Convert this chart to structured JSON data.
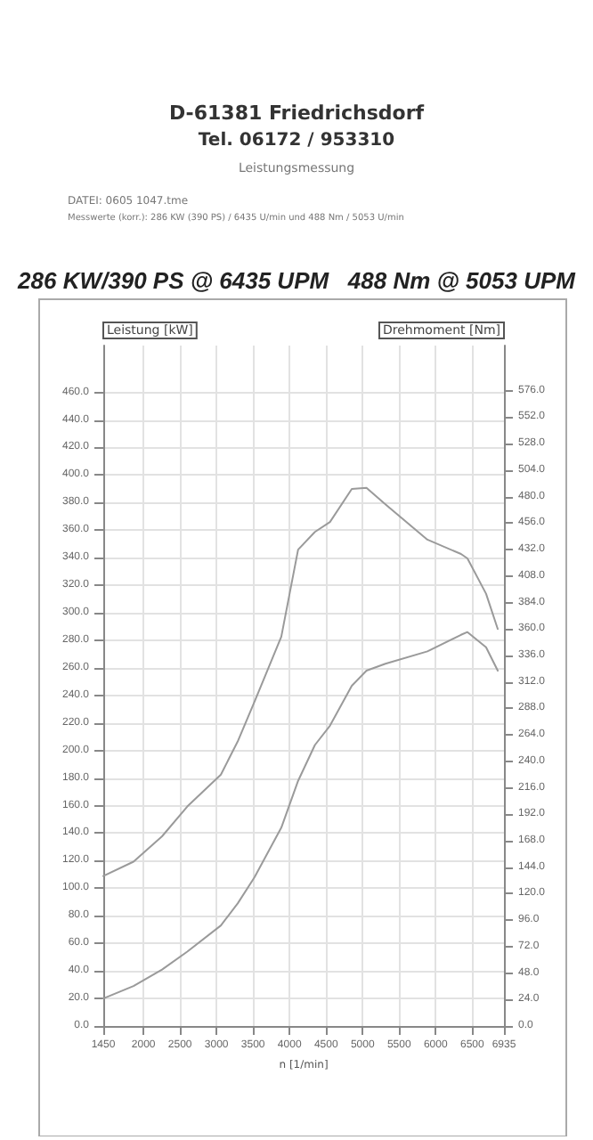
{
  "chart_data": {
    "type": "line",
    "title": "286 KW/390 PS @ 6435 UPM   488 Nm @ 5053 UPM",
    "annotations": [
      "D-61381 Friedrichsdorf",
      "Tel. 06172 / 953310",
      "Leistungsmessung",
      "DATEI: 0605 1047.tme",
      "Messwerte (korr.): 286 KW (390 PS) / 6435 U/min und 488 Nm / 5053 U/min"
    ],
    "xlabel": "n [1/min]",
    "ylabel": "Leistung [kW]",
    "y2label": "Drehmoment [Nm]",
    "x": [
      1450,
      1864,
      2255,
      2600,
      3060,
      3290,
      3520,
      3887,
      4117,
      4347,
      4553,
      4852,
      5053,
      5312,
      5887,
      6347,
      6435,
      6690,
      6850
    ],
    "series": [
      {
        "color": "#9a9a9a",
        "values": [
          20,
          29,
          41,
          54,
          73,
          89,
          108,
          144,
          178,
          204,
          218,
          247,
          258,
          263,
          272,
          284,
          286,
          275,
          258
        ]
      },
      {
        "color": "#9a9a9a",
        "axis": "y2",
        "values": [
          136,
          149,
          172,
          199,
          228,
          258,
          294,
          353,
          432,
          448,
          457,
          487,
          488,
          473,
          441,
          428,
          424,
          392,
          360
        ]
      }
    ],
    "xlim": [
      1450,
      6935
    ],
    "xticks": [
      1450,
      2000,
      2500,
      3000,
      3500,
      4000,
      4500,
      5000,
      5500,
      6000,
      6500,
      6935
    ],
    "ylim": [
      0,
      494
    ],
    "yticks": [
      {
        "value": 0,
        "label": "0.0"
      },
      {
        "value": 20,
        "label": "20.0"
      },
      {
        "value": 40,
        "label": "40.0"
      },
      {
        "value": 60,
        "label": "60.0"
      },
      {
        "value": 80,
        "label": "80.0"
      },
      {
        "value": 100,
        "label": "100.0"
      },
      {
        "value": 120,
        "label": "120.0"
      },
      {
        "value": 140,
        "label": "140.0"
      },
      {
        "value": 160,
        "label": "160.0"
      },
      {
        "value": 180,
        "label": "180.0"
      },
      {
        "value": 200,
        "label": "200.0"
      },
      {
        "value": 220,
        "label": "220.0"
      },
      {
        "value": 240,
        "label": "240.0"
      },
      {
        "value": 260,
        "label": "260.0"
      },
      {
        "value": 280,
        "label": "280.0"
      },
      {
        "value": 300,
        "label": "300.0"
      },
      {
        "value": 320,
        "label": "320.0"
      },
      {
        "value": 340,
        "label": "340.0"
      },
      {
        "value": 360,
        "label": "360.0"
      },
      {
        "value": 380,
        "label": "380.0"
      },
      {
        "value": 400,
        "label": "400.0"
      },
      {
        "value": 420,
        "label": "420.0"
      },
      {
        "value": 440,
        "label": "440.0"
      },
      {
        "value": 460,
        "label": "460.0"
      }
    ],
    "y2lim": [
      0,
      617
    ],
    "y2ticks": [
      {
        "value": 0,
        "label": "0.0"
      },
      {
        "value": 24,
        "label": "24.0"
      },
      {
        "value": 48,
        "label": "48.0"
      },
      {
        "value": 72,
        "label": "72.0"
      },
      {
        "value": 96,
        "label": "96.0"
      },
      {
        "value": 120,
        "label": "120.0"
      },
      {
        "value": 144,
        "label": "144.0"
      },
      {
        "value": 168,
        "label": "168.0"
      },
      {
        "value": 192,
        "label": "192.0"
      },
      {
        "value": 216,
        "label": "216.0"
      },
      {
        "value": 240,
        "label": "240.0"
      },
      {
        "value": 264,
        "label": "264.0"
      },
      {
        "value": 288,
        "label": "288.0"
      },
      {
        "value": 312,
        "label": "312.0"
      },
      {
        "value": 336,
        "label": "336.0"
      },
      {
        "value": 360,
        "label": "360.0"
      },
      {
        "value": 384,
        "label": "384.0"
      },
      {
        "value": 408,
        "label": "408.0"
      },
      {
        "value": 432,
        "label": "432.0"
      },
      {
        "value": 456,
        "label": "456.0"
      },
      {
        "value": 480,
        "label": "480.0"
      },
      {
        "value": 504,
        "label": "504.0"
      },
      {
        "value": 528,
        "label": "528.0"
      },
      {
        "value": 552,
        "label": "552.0"
      },
      {
        "value": 576,
        "label": "576.0"
      }
    ],
    "grid": true,
    "marker": "none",
    "line_style": "solid"
  }
}
